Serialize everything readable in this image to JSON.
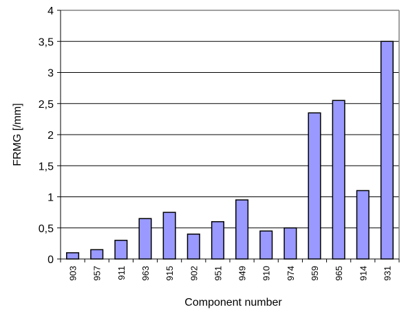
{
  "chart_data": {
    "type": "bar",
    "title": "",
    "xlabel": "Component number",
    "ylabel": "FRMG [/mm]",
    "categories": [
      "903",
      "957",
      "911",
      "963",
      "915",
      "902",
      "951",
      "949",
      "910",
      "974",
      "959",
      "965",
      "914",
      "931"
    ],
    "series": [
      {
        "values": [
          0.1,
          0.15,
          0.3,
          0.65,
          0.75,
          0.4,
          0.6,
          0.95,
          0.45,
          0.5,
          2.35,
          2.55,
          1.1,
          3.5
        ]
      }
    ],
    "ylim": [
      0,
      4
    ],
    "yticks": [
      0,
      0.5,
      1,
      1.5,
      2,
      2.5,
      3,
      3.5,
      4
    ],
    "ytick_labels": [
      "0",
      "0,5",
      "1",
      "1,5",
      "2",
      "2,5",
      "3",
      "3,5",
      "4"
    ],
    "grid": "horizontal",
    "legend": "none",
    "colors": {
      "bar_fill": "#9999ff",
      "bar_stroke": "#000000",
      "gridline": "#000000",
      "plot_border": "#808080",
      "background": "#ffffff"
    }
  }
}
